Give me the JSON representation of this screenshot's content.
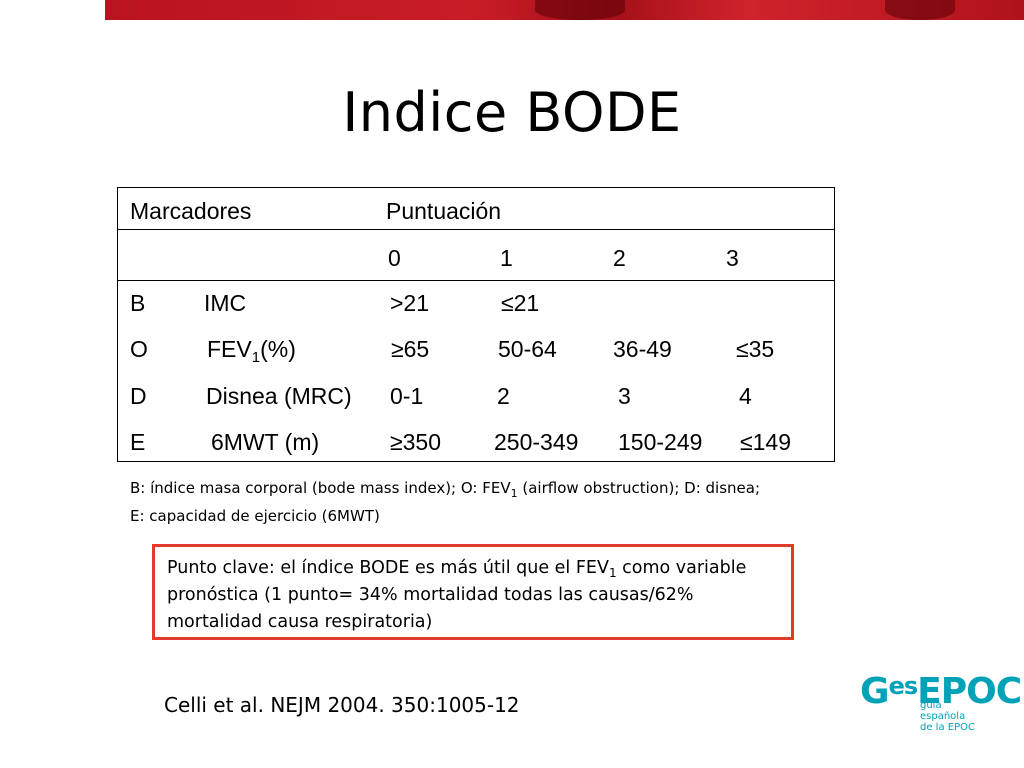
{
  "slide": {
    "title": "Indice BODE",
    "table": {
      "header_markers": "Marcadores",
      "header_score": "Puntuación",
      "scores": [
        "0",
        "1",
        "2",
        "3"
      ],
      "rows": [
        {
          "letter": "B",
          "marker": "IMC",
          "sub": "",
          "marker_suffix": "",
          "values": [
            ">21",
            "≤21",
            "",
            ""
          ]
        },
        {
          "letter": "O",
          "marker": "FEV",
          "sub": "1",
          "marker_suffix": "(%)",
          "values": [
            "≥65",
            "50-64",
            "36-49",
            "≤35"
          ]
        },
        {
          "letter": "D",
          "marker": "Disnea (MRC)",
          "sub": "",
          "marker_suffix": "",
          "values": [
            "0-1",
            "2",
            "3",
            "4"
          ]
        },
        {
          "letter": "E",
          "marker": "6MWT (m)",
          "sub": "",
          "marker_suffix": "",
          "values": [
            "≥350",
            "250-349",
            "150-249",
            "≤149"
          ]
        }
      ]
    },
    "footnote": {
      "line1_a": "B: índice masa corporal (bode mass index); O: FEV",
      "line1_sub": "1",
      "line1_b": " (airflow obstruction); D: disnea;",
      "line2": "E: capacidad de ejercicio (6MWT)"
    },
    "keypoint": {
      "line1_a": "Punto clave: el índice BODE es más útil que el FEV",
      "line1_sub": "1",
      "line1_b": " como variable",
      "line2": "pronóstica (1 punto= 34% mortalidad todas las causas/62%",
      "line3": "mortalidad causa respiratoria)"
    },
    "citation": "Celli et al. NEJM 2004. 350:1005-12",
    "logo": {
      "word_g": "G",
      "word_es": "es",
      "word_epoc": "EPOC",
      "sub_lines": [
        "guía",
        "española",
        "de la EPOC"
      ]
    },
    "colors": {
      "banner": "#c01a22",
      "keypoint_border": "#e03c2a",
      "logo": "#00a2b8"
    }
  }
}
